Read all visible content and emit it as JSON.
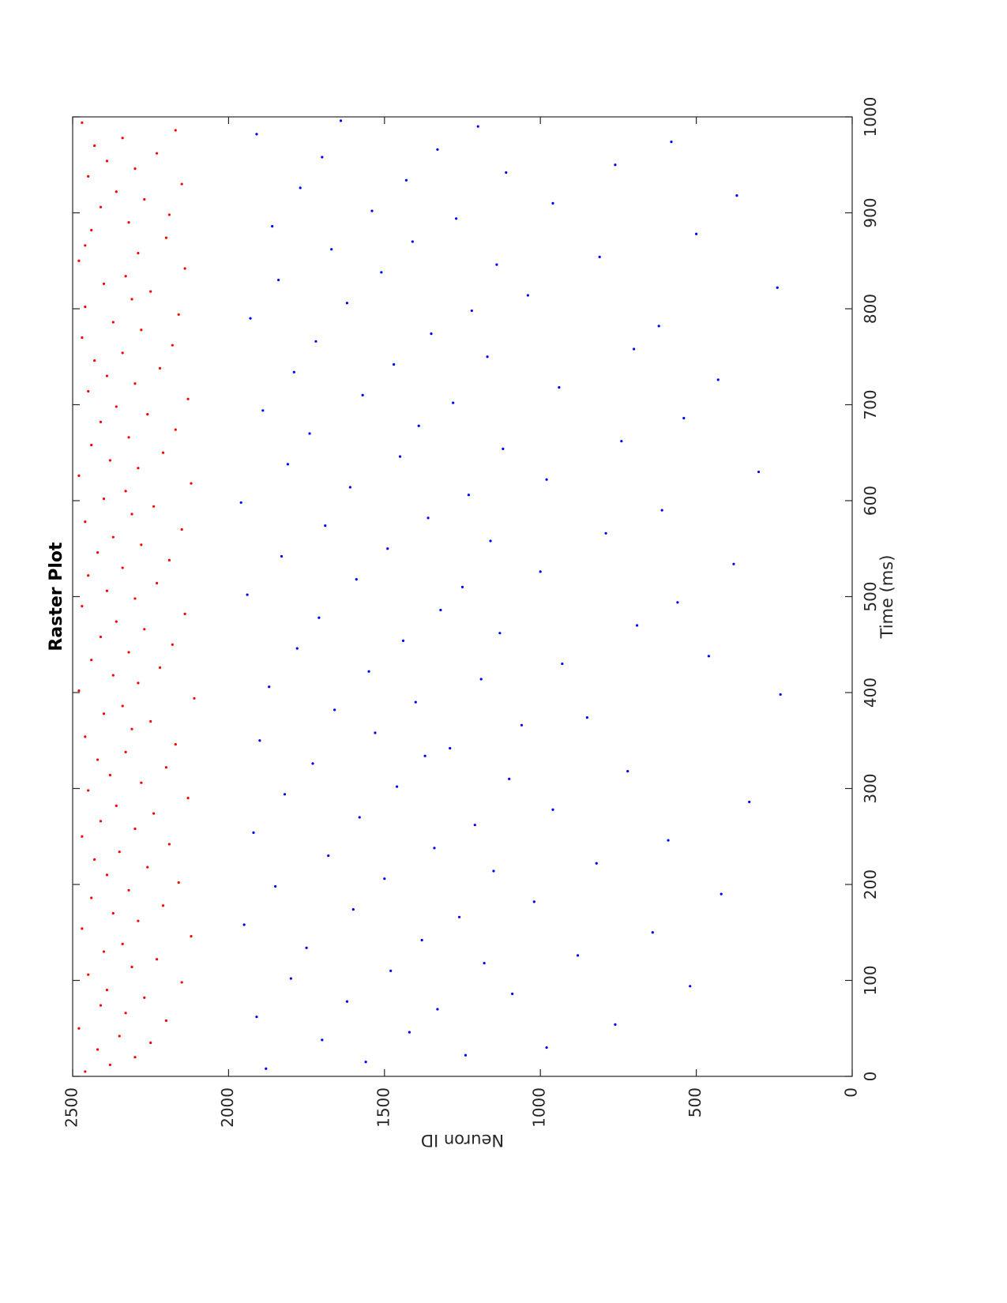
{
  "chart_data": {
    "type": "scatter",
    "title": "Raster Plot",
    "xlabel": "Time (ms)",
    "ylabel": "Neuron ID",
    "xlim": [
      0,
      1000
    ],
    "ylim": [
      0,
      2500
    ],
    "xticks": [
      "0",
      "100",
      "200",
      "300",
      "400",
      "500",
      "600",
      "700",
      "800",
      "900",
      "1000"
    ],
    "yticks": [
      "0",
      "500",
      "1000",
      "1500",
      "2000",
      "2500"
    ],
    "orientation": "figure rotated 90 degrees counterclockwise",
    "grid": false,
    "marker": "dot",
    "series": [
      {
        "neuron_range": [
          2000,
          2500
        ],
        "color": "#ff0000",
        "points": [
          [
            5,
            2460
          ],
          [
            12,
            2380
          ],
          [
            20,
            2300
          ],
          [
            28,
            2420
          ],
          [
            35,
            2250
          ],
          [
            42,
            2350
          ],
          [
            50,
            2480
          ],
          [
            58,
            2200
          ],
          [
            66,
            2330
          ],
          [
            74,
            2410
          ],
          [
            82,
            2270
          ],
          [
            90,
            2390
          ],
          [
            98,
            2150
          ],
          [
            106,
            2450
          ],
          [
            114,
            2310
          ],
          [
            122,
            2230
          ],
          [
            130,
            2400
          ],
          [
            138,
            2340
          ],
          [
            146,
            2120
          ],
          [
            154,
            2470
          ],
          [
            162,
            2290
          ],
          [
            170,
            2370
          ],
          [
            178,
            2210
          ],
          [
            186,
            2440
          ],
          [
            194,
            2320
          ],
          [
            202,
            2160
          ],
          [
            210,
            2390
          ],
          [
            218,
            2260
          ],
          [
            226,
            2430
          ],
          [
            234,
            2350
          ],
          [
            242,
            2190
          ],
          [
            250,
            2470
          ],
          [
            258,
            2300
          ],
          [
            266,
            2410
          ],
          [
            274,
            2240
          ],
          [
            282,
            2360
          ],
          [
            290,
            2130
          ],
          [
            298,
            2450
          ],
          [
            306,
            2280
          ],
          [
            314,
            2380
          ],
          [
            322,
            2200
          ],
          [
            330,
            2420
          ],
          [
            338,
            2330
          ],
          [
            346,
            2170
          ],
          [
            354,
            2460
          ],
          [
            362,
            2310
          ],
          [
            370,
            2250
          ],
          [
            378,
            2400
          ],
          [
            386,
            2340
          ],
          [
            394,
            2110
          ],
          [
            402,
            2480
          ],
          [
            410,
            2290
          ],
          [
            418,
            2370
          ],
          [
            426,
            2220
          ],
          [
            434,
            2440
          ],
          [
            442,
            2320
          ],
          [
            450,
            2180
          ],
          [
            458,
            2410
          ],
          [
            466,
            2270
          ],
          [
            474,
            2360
          ],
          [
            482,
            2140
          ],
          [
            490,
            2470
          ],
          [
            498,
            2300
          ],
          [
            506,
            2390
          ],
          [
            514,
            2230
          ],
          [
            522,
            2450
          ],
          [
            530,
            2340
          ],
          [
            538,
            2190
          ],
          [
            546,
            2420
          ],
          [
            554,
            2280
          ],
          [
            562,
            2370
          ],
          [
            570,
            2150
          ],
          [
            578,
            2460
          ],
          [
            586,
            2310
          ],
          [
            594,
            2240
          ],
          [
            602,
            2400
          ],
          [
            610,
            2330
          ],
          [
            618,
            2120
          ],
          [
            626,
            2480
          ],
          [
            634,
            2290
          ],
          [
            642,
            2380
          ],
          [
            650,
            2210
          ],
          [
            658,
            2440
          ],
          [
            666,
            2320
          ],
          [
            674,
            2170
          ],
          [
            682,
            2410
          ],
          [
            690,
            2260
          ],
          [
            698,
            2360
          ],
          [
            706,
            2130
          ],
          [
            714,
            2450
          ],
          [
            722,
            2300
          ],
          [
            730,
            2390
          ],
          [
            738,
            2220
          ],
          [
            746,
            2430
          ],
          [
            754,
            2340
          ],
          [
            762,
            2180
          ],
          [
            770,
            2470
          ],
          [
            778,
            2280
          ],
          [
            786,
            2370
          ],
          [
            794,
            2160
          ],
          [
            802,
            2460
          ],
          [
            810,
            2310
          ],
          [
            818,
            2250
          ],
          [
            826,
            2400
          ],
          [
            834,
            2330
          ],
          [
            842,
            2140
          ],
          [
            850,
            2480
          ],
          [
            858,
            2290
          ],
          [
            866,
            2460
          ],
          [
            874,
            2200
          ],
          [
            882,
            2440
          ],
          [
            890,
            2320
          ],
          [
            898,
            2190
          ],
          [
            906,
            2410
          ],
          [
            914,
            2270
          ],
          [
            922,
            2360
          ],
          [
            930,
            2150
          ],
          [
            938,
            2450
          ],
          [
            946,
            2300
          ],
          [
            954,
            2390
          ],
          [
            962,
            2230
          ],
          [
            970,
            2430
          ],
          [
            978,
            2340
          ],
          [
            986,
            2170
          ],
          [
            994,
            2470
          ]
        ]
      },
      {
        "neuron_range": [
          0,
          2000
        ],
        "color": "#0000ff",
        "points": [
          [
            8,
            1880
          ],
          [
            15,
            1560
          ],
          [
            22,
            1240
          ],
          [
            30,
            980
          ],
          [
            38,
            1700
          ],
          [
            46,
            1420
          ],
          [
            54,
            760
          ],
          [
            62,
            1910
          ],
          [
            70,
            1330
          ],
          [
            78,
            1620
          ],
          [
            86,
            1090
          ],
          [
            94,
            520
          ],
          [
            102,
            1800
          ],
          [
            110,
            1480
          ],
          [
            118,
            1180
          ],
          [
            126,
            880
          ],
          [
            134,
            1750
          ],
          [
            142,
            1380
          ],
          [
            150,
            640
          ],
          [
            158,
            1950
          ],
          [
            166,
            1260
          ],
          [
            174,
            1600
          ],
          [
            182,
            1020
          ],
          [
            190,
            420
          ],
          [
            198,
            1850
          ],
          [
            206,
            1500
          ],
          [
            214,
            1150
          ],
          [
            222,
            820
          ],
          [
            230,
            1680
          ],
          [
            238,
            1340
          ],
          [
            246,
            590
          ],
          [
            254,
            1920
          ],
          [
            262,
            1210
          ],
          [
            270,
            1580
          ],
          [
            278,
            960
          ],
          [
            286,
            330
          ],
          [
            294,
            1820
          ],
          [
            302,
            1460
          ],
          [
            310,
            1100
          ],
          [
            318,
            720
          ],
          [
            326,
            1730
          ],
          [
            334,
            1370
          ],
          [
            342,
            1290
          ],
          [
            350,
            1900
          ],
          [
            358,
            1530
          ],
          [
            366,
            1060
          ],
          [
            374,
            850
          ],
          [
            382,
            1660
          ],
          [
            390,
            1400
          ],
          [
            398,
            230
          ],
          [
            406,
            1870
          ],
          [
            414,
            1190
          ],
          [
            422,
            1550
          ],
          [
            430,
            930
          ],
          [
            438,
            460
          ],
          [
            446,
            1780
          ],
          [
            454,
            1440
          ],
          [
            462,
            1130
          ],
          [
            470,
            690
          ],
          [
            478,
            1710
          ],
          [
            486,
            1320
          ],
          [
            494,
            560
          ],
          [
            502,
            1940
          ],
          [
            510,
            1250
          ],
          [
            518,
            1590
          ],
          [
            526,
            1000
          ],
          [
            534,
            380
          ],
          [
            542,
            1830
          ],
          [
            550,
            1490
          ],
          [
            558,
            1160
          ],
          [
            566,
            790
          ],
          [
            574,
            1690
          ],
          [
            582,
            1360
          ],
          [
            590,
            610
          ],
          [
            598,
            1960
          ],
          [
            606,
            1230
          ],
          [
            614,
            1610
          ],
          [
            622,
            980
          ],
          [
            630,
            300
          ],
          [
            638,
            1810
          ],
          [
            646,
            1450
          ],
          [
            654,
            1120
          ],
          [
            662,
            740
          ],
          [
            670,
            1740
          ],
          [
            678,
            1390
          ],
          [
            686,
            540
          ],
          [
            694,
            1890
          ],
          [
            702,
            1280
          ],
          [
            710,
            1570
          ],
          [
            718,
            940
          ],
          [
            726,
            430
          ],
          [
            734,
            1790
          ],
          [
            742,
            1470
          ],
          [
            750,
            1170
          ],
          [
            758,
            700
          ],
          [
            766,
            1720
          ],
          [
            774,
            1350
          ],
          [
            782,
            620
          ],
          [
            790,
            1930
          ],
          [
            798,
            1220
          ],
          [
            806,
            1620
          ],
          [
            814,
            1040
          ],
          [
            822,
            240
          ],
          [
            830,
            1840
          ],
          [
            838,
            1510
          ],
          [
            846,
            1140
          ],
          [
            854,
            810
          ],
          [
            862,
            1670
          ],
          [
            870,
            1410
          ],
          [
            878,
            500
          ],
          [
            886,
            1860
          ],
          [
            894,
            1270
          ],
          [
            902,
            1540
          ],
          [
            910,
            960
          ],
          [
            918,
            370
          ],
          [
            926,
            1770
          ],
          [
            934,
            1430
          ],
          [
            942,
            1110
          ],
          [
            950,
            760
          ],
          [
            958,
            1700
          ],
          [
            966,
            1330
          ],
          [
            974,
            580
          ],
          [
            982,
            1910
          ],
          [
            990,
            1200
          ],
          [
            996,
            1640
          ]
        ]
      }
    ]
  }
}
